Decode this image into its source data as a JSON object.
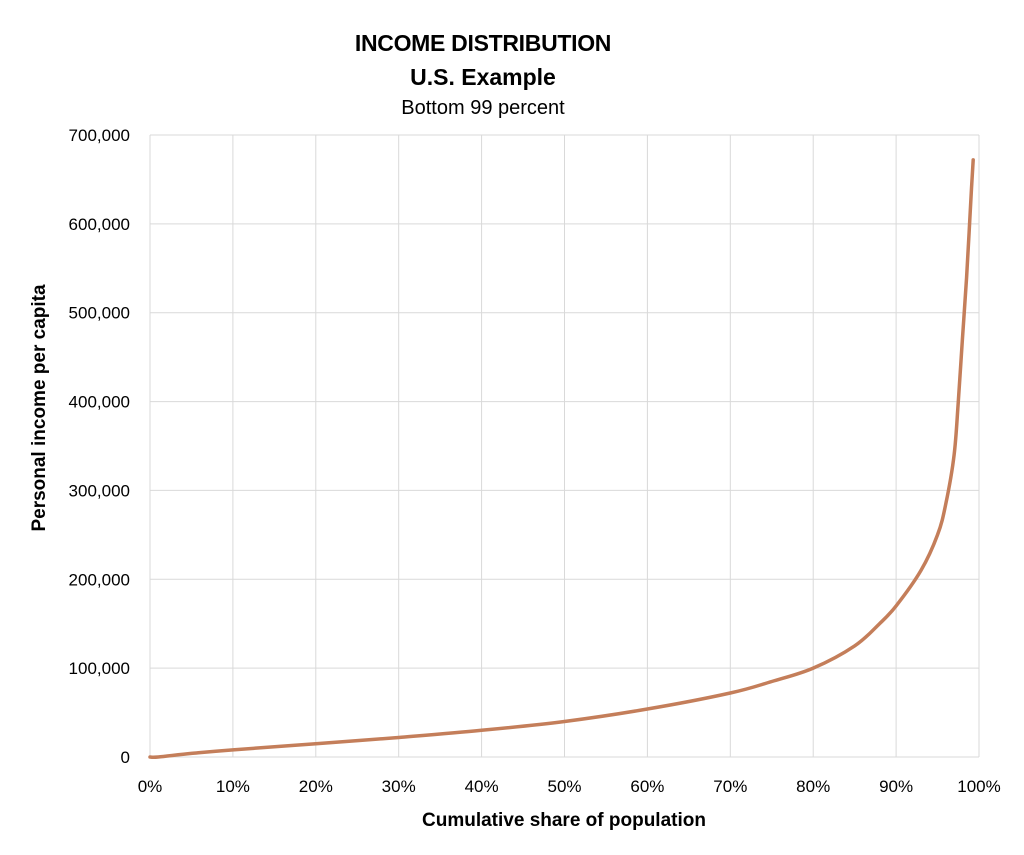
{
  "chart_data": {
    "type": "line",
    "title": "INCOME DISTRIBUTION",
    "subtitle": "U.S. Example",
    "subtitle2": "Bottom 99 percent",
    "xlabel": "Cumulative share of population",
    "ylabel": "Personal income per capita",
    "xlim": [
      0,
      100
    ],
    "ylim": [
      0,
      700000
    ],
    "x_ticks": [
      "0%",
      "10%",
      "20%",
      "30%",
      "40%",
      "50%",
      "60%",
      "70%",
      "80%",
      "90%",
      "100%"
    ],
    "y_ticks": [
      "0",
      "100,000",
      "200,000",
      "300,000",
      "400,000",
      "500,000",
      "600,000",
      "700,000"
    ],
    "grid": true,
    "legend": "none",
    "series": [
      {
        "color": "#C47E5A",
        "x": [
          0,
          1,
          5,
          10,
          20,
          30,
          40,
          50,
          60,
          70,
          75,
          80,
          85,
          88,
          90,
          93,
          95,
          96,
          97,
          97.5,
          98,
          98.5,
          98.8,
          99.1,
          99.3
        ],
        "y": [
          0,
          0,
          4000,
          8000,
          15000,
          22000,
          30000,
          40000,
          54000,
          72000,
          85000,
          100000,
          125000,
          150000,
          170000,
          210000,
          250000,
          285000,
          340000,
          400000,
          470000,
          540000,
          590000,
          640000,
          672000
        ]
      }
    ]
  }
}
